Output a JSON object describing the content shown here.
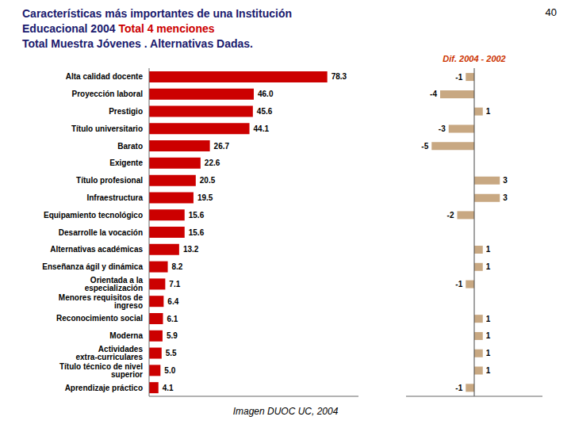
{
  "chart_data": [
    {
      "type": "bar",
      "orientation": "horizontal",
      "title": "Características más importantes de una Institución",
      "subtitle": "Total Muestra Jóvenes . Alternativas Dadas.",
      "annotations": [
        {
          "text": "Educacional 2004",
          "color": "#1a1a6e"
        },
        {
          "text": "Total 4 menciones",
          "color": "#CC0000"
        },
        {
          "text": "40",
          "color": "#000000"
        },
        {
          "text": "Imagen DUOC UC, 2004",
          "color": "#000000"
        }
      ],
      "categories": [
        "Alta calidad docente",
        "Proyección laboral",
        "Prestigio",
        "Título universitario",
        "Barato",
        "Exigente",
        "Título profesional",
        "Infraestructura",
        "Equipamiento tecnológico",
        "Desarrolle la vocación",
        "Alternativas académicas",
        "Enseñanza ágil y dinámica",
        "Orientada a la especialización",
        "Menores requisitos de ingreso",
        "Reconocimiento social",
        "Moderna",
        "Actividades extra-curriculares",
        "Título técnico de nivel superior",
        "Aprendizaje práctico"
      ],
      "values": [
        78.3,
        46.0,
        45.6,
        44.1,
        26.7,
        22.6,
        20.5,
        19.5,
        15.6,
        15.6,
        13.2,
        8.2,
        7.1,
        6.4,
        6.1,
        5.9,
        5.5,
        5.0,
        4.1
      ],
      "value_labels": [
        "78.3",
        "46.0",
        "45.6",
        "44.1",
        "26.7",
        "22.6",
        "20.5",
        "19.5",
        "15.6",
        "15.6",
        "13.2",
        "8.2",
        "7.1",
        "6.4",
        "6.1",
        "5.9",
        "5.5",
        "5.0",
        "4.1"
      ],
      "color": "#CC0000",
      "xlim": [
        0,
        92
      ],
      "data_labels": true,
      "tick_labels": "y"
    },
    {
      "type": "bar",
      "orientation": "horizontal",
      "title": "Dif. 2004 - 2002",
      "categories": [
        "Alta calidad docente",
        "Proyección laboral",
        "Prestigio",
        "Título universitario",
        "Barato",
        "Exigente",
        "Título profesional",
        "Infraestructura",
        "Equipamiento tecnológico",
        "Desarrolle la vocación",
        "Alternativas académicas",
        "Enseñanza ágil y dinámica",
        "Orientada a la especialización",
        "Menores requisitos de ingreso",
        "Reconocimiento social",
        "Moderna",
        "Actividades extra-curriculares",
        "Título técnico de nivel superior",
        "Aprendizaje práctico"
      ],
      "values": [
        -1,
        -4,
        1,
        -3,
        -5,
        0,
        3,
        3,
        -2,
        0,
        1,
        1,
        -1,
        0,
        1,
        1,
        1,
        1,
        -1
      ],
      "color": "#C8A882",
      "xlim": [
        -8,
        8
      ],
      "data_labels": true,
      "tick_labels": false
    }
  ]
}
